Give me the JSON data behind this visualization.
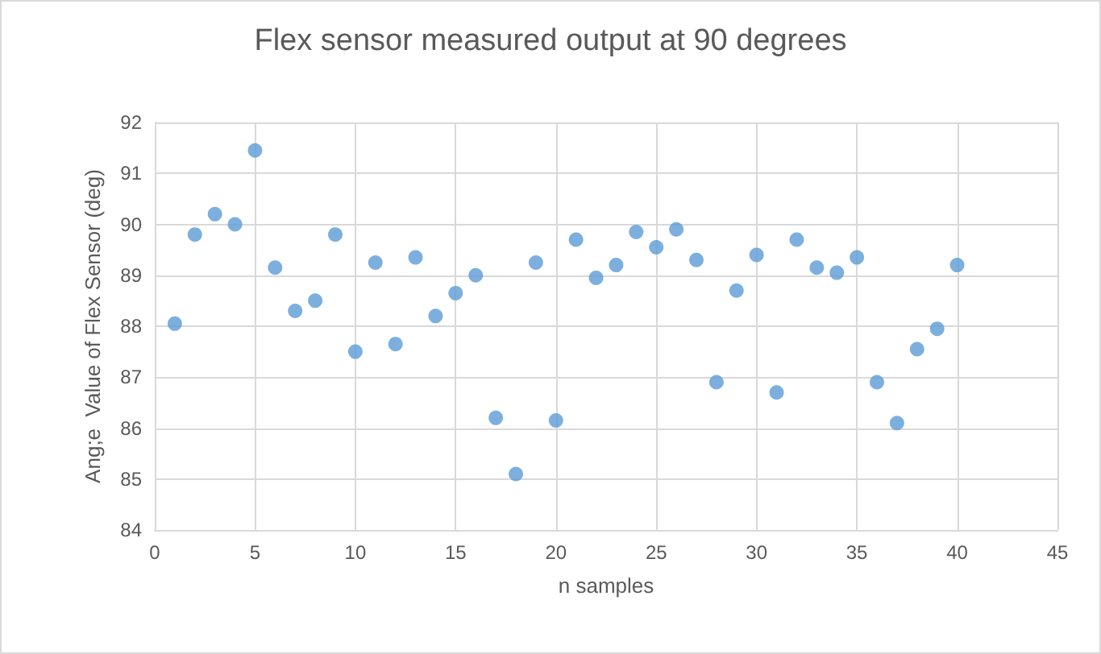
{
  "chart_data": {
    "type": "scatter",
    "title": "Flex sensor measured output at 90 degrees",
    "xlabel": "n samples",
    "ylabel": "Ang;e  Value of Flex Sensor (deg)",
    "x": [
      1,
      2,
      3,
      4,
      5,
      6,
      7,
      8,
      9,
      10,
      11,
      12,
      13,
      14,
      15,
      16,
      17,
      18,
      19,
      20,
      21,
      22,
      23,
      24,
      25,
      26,
      27,
      28,
      29,
      30,
      31,
      32,
      33,
      34,
      35,
      36,
      37,
      38,
      39,
      40
    ],
    "values": [
      88.05,
      89.8,
      90.2,
      90.0,
      91.45,
      89.15,
      88.3,
      88.5,
      89.8,
      87.5,
      89.25,
      87.65,
      89.35,
      88.2,
      88.65,
      89.0,
      86.2,
      85.1,
      89.25,
      86.15,
      89.7,
      88.95,
      89.2,
      89.85,
      89.55,
      89.9,
      89.3,
      86.9,
      88.7,
      89.4,
      86.7,
      89.7,
      89.15,
      89.05,
      89.35,
      86.9,
      86.1,
      87.55,
      87.95,
      89.2
    ],
    "color": "#5b9bd5",
    "marker": "circle",
    "grid": true,
    "xlim": [
      0,
      45
    ],
    "xticks": [
      0,
      5,
      10,
      15,
      20,
      25,
      30,
      35,
      40,
      45
    ],
    "ylim": [
      84,
      92
    ],
    "yticks": [
      84,
      85,
      86,
      87,
      88,
      89,
      90,
      91,
      92
    ]
  }
}
